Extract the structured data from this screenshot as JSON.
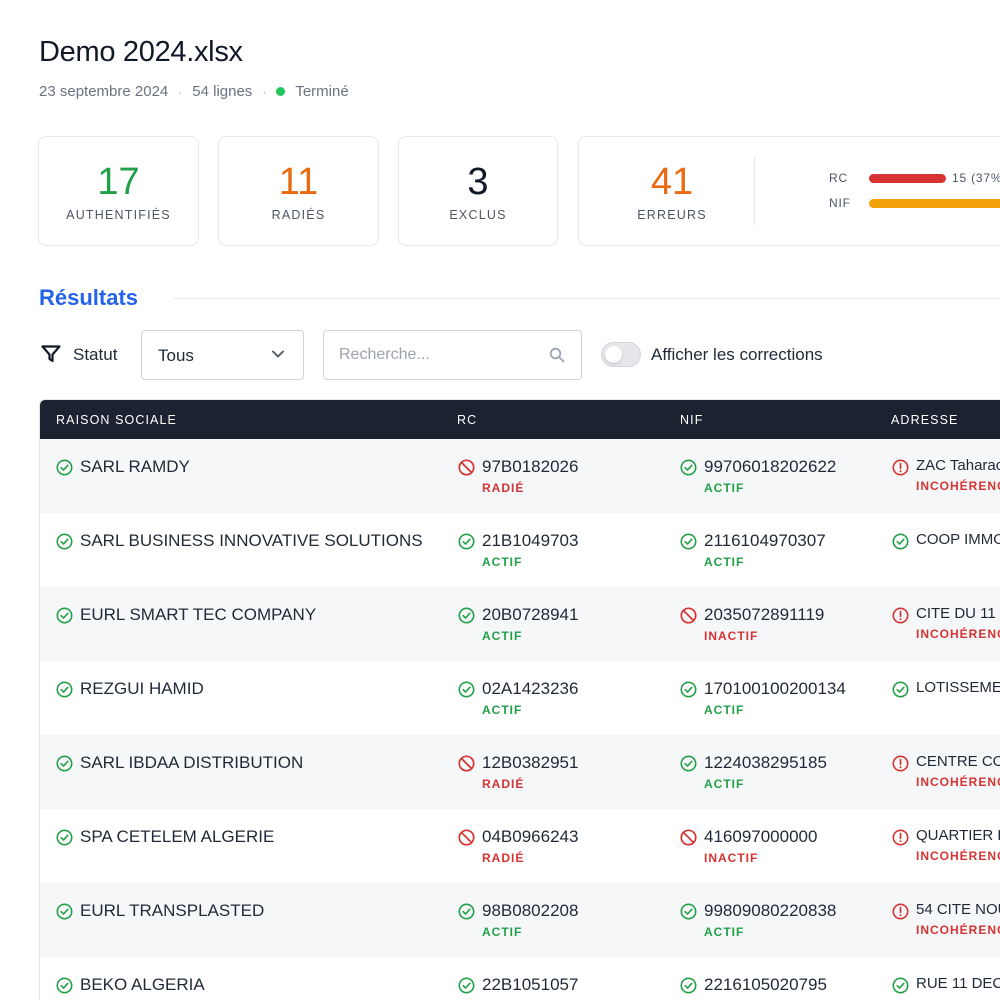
{
  "header": {
    "title": "Demo 2024.xlsx",
    "date": "23 septembre 2024",
    "lines": "54 lignes",
    "separator": "·",
    "status": "Terminé"
  },
  "stats": [
    {
      "value": "17",
      "label": "AUTHENTIFIÉS"
    },
    {
      "value": "11",
      "label": "RADIÉS"
    },
    {
      "value": "3",
      "label": "EXCLUS"
    },
    {
      "value": "41",
      "label": "ERREURS"
    }
  ],
  "error_breakdown": [
    {
      "label": "RC",
      "value_text": "15 (37%",
      "color": "#d63333",
      "fraction": 0.37
    },
    {
      "label": "NIF",
      "value_text": "",
      "color": "#f4a20b",
      "fraction": 1.0
    }
  ],
  "results": {
    "title": "Résultats",
    "filter_label": "Statut",
    "filter_value": "Tous",
    "search_placeholder": "Recherche...",
    "toggle_label": "Afficher les corrections"
  },
  "colors": {
    "ok": "#22a048",
    "bad": "#d63333",
    "accent": "#2563eb",
    "header_bg": "#1b2331"
  },
  "table": {
    "columns": [
      "RAISON SOCIALE",
      "RC",
      "NIF",
      "ADRESSE"
    ],
    "rows": [
      {
        "name": "SARL RAMDY",
        "rc": "97B0182026",
        "rc_status": "RADIÉ",
        "rc_ok": false,
        "nif": "99706018202622",
        "nif_status": "ACTIF",
        "nif_ok": true,
        "address": "ZAC Taharac",
        "address_status": "INCOHÉRENC",
        "address_ok": false
      },
      {
        "name": "SARL BUSINESS INNOVATIVE SOLUTIONS",
        "rc": "21B1049703",
        "rc_status": "ACTIF",
        "rc_ok": true,
        "nif": "2116104970307",
        "nif_status": "ACTIF",
        "nif_ok": true,
        "address": "COOP IMMO",
        "address_status": "",
        "address_ok": true
      },
      {
        "name": "EURL SMART TEC COMPANY",
        "rc": "20B0728941",
        "rc_status": "ACTIF",
        "rc_ok": true,
        "nif": "2035072891119",
        "nif_status": "INACTIF",
        "nif_ok": false,
        "address": "CITE DU 11 D",
        "address_status": "INCOHÉRENC",
        "address_ok": false
      },
      {
        "name": "REZGUI HAMID",
        "rc": "02A1423236",
        "rc_status": "ACTIF",
        "rc_ok": true,
        "nif": "170100100200134",
        "nif_status": "ACTIF",
        "nif_ok": true,
        "address": "LOTISSEMEN",
        "address_status": "",
        "address_ok": true
      },
      {
        "name": "SARL IBDAA DISTRIBUTION",
        "rc": "12B0382951",
        "rc_status": "RADIÉ",
        "rc_ok": false,
        "nif": "1224038295185",
        "nif_status": "ACTIF",
        "nif_ok": true,
        "address": "CENTRE COI",
        "address_status": "INCOHÉRENC",
        "address_ok": false
      },
      {
        "name": "SPA CETELEM ALGERIE",
        "rc": "04B0966243",
        "rc_status": "RADIÉ",
        "rc_ok": false,
        "nif": "416097000000",
        "nif_status": "INACTIF",
        "nif_ok": false,
        "address": "QUARTIER D",
        "address_status": "INCOHÉRENC",
        "address_ok": false
      },
      {
        "name": "EURL TRANSPLASTED",
        "rc": "98B0802208",
        "rc_status": "ACTIF",
        "rc_ok": true,
        "nif": "99809080220838",
        "nif_status": "ACTIF",
        "nif_ok": true,
        "address": "54 CITE NOU",
        "address_status": "INCOHÉRENC",
        "address_ok": false
      },
      {
        "name": "BEKO ALGERIA",
        "rc": "22B1051057",
        "rc_status": "ACTIF",
        "rc_ok": true,
        "nif": "2216105020795",
        "nif_status": "ACTIF",
        "nif_ok": true,
        "address": "RUE 11 DEC",
        "address_status": "",
        "address_ok": true
      }
    ]
  }
}
